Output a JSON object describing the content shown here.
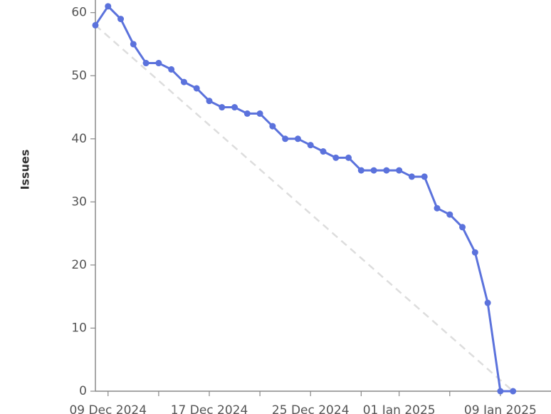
{
  "chart_data": {
    "type": "line",
    "y_label": "Issues",
    "x": [
      "2024-12-08",
      "2024-12-09",
      "2024-12-10",
      "2024-12-11",
      "2024-12-12",
      "2024-12-13",
      "2024-12-14",
      "2024-12-15",
      "2024-12-16",
      "2024-12-17",
      "2024-12-18",
      "2024-12-19",
      "2024-12-20",
      "2024-12-21",
      "2024-12-22",
      "2024-12-23",
      "2024-12-24",
      "2024-12-25",
      "2024-12-26",
      "2024-12-27",
      "2024-12-28",
      "2024-12-29",
      "2024-12-30",
      "2024-12-31",
      "2025-01-01",
      "2025-01-02",
      "2025-01-03",
      "2025-01-04",
      "2025-01-05",
      "2025-01-06",
      "2025-01-07",
      "2025-01-08",
      "2025-01-09",
      "2025-01-10"
    ],
    "series": [
      {
        "color": "#5b72dc",
        "markers": true,
        "values": [
          58,
          61,
          59,
          55,
          52,
          52,
          51,
          49,
          48,
          46,
          45,
          45,
          44,
          44,
          42,
          40,
          40,
          39,
          38,
          37,
          37,
          35,
          35,
          35,
          35,
          34,
          34,
          29,
          28,
          26,
          22,
          14,
          0,
          0
        ]
      },
      {
        "color": "#dddddd",
        "dashed": true,
        "markers": false,
        "x": [
          "2024-12-08",
          "2025-01-10"
        ],
        "values": [
          58,
          0
        ]
      }
    ],
    "xlim": [
      "2024-12-08",
      "2025-01-13"
    ],
    "xticks": [
      {
        "value": "2024-12-09",
        "label": "09 Dec 2024"
      },
      {
        "value": "2024-12-17",
        "label": "17 Dec 2024"
      },
      {
        "value": "2024-12-25",
        "label": "25 Dec 2024"
      },
      {
        "value": "2025-01-01",
        "label": "01 Jan 2025"
      },
      {
        "value": "2025-01-09",
        "label": "09 Jan 2025"
      }
    ],
    "xminor_ticks": [
      "2024-12-13",
      "2024-12-21",
      "2024-12-29",
      "2025-01-05"
    ],
    "ylim": [
      0,
      62
    ],
    "yticks": [
      0,
      10,
      20,
      30,
      40,
      50,
      60
    ]
  }
}
